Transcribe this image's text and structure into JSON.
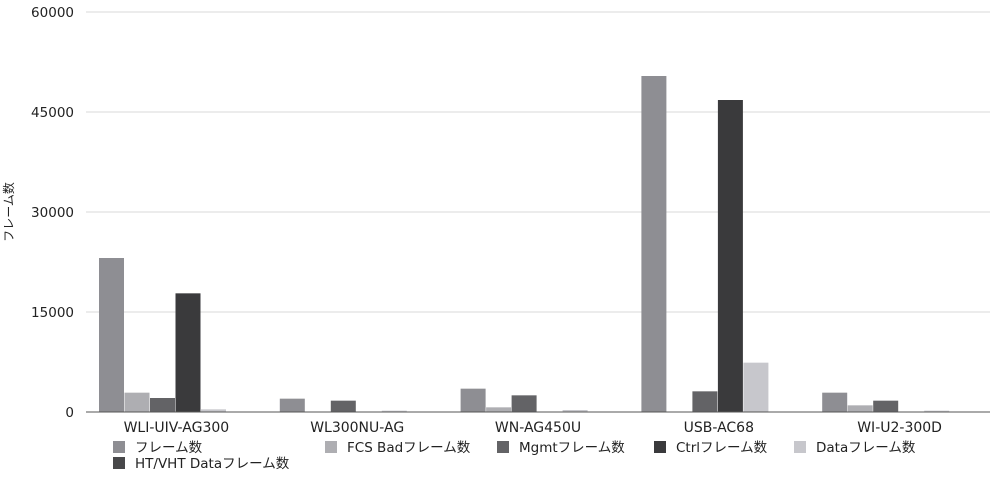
{
  "chart_data": {
    "type": "bar",
    "title": "",
    "xlabel": "",
    "ylabel": "フレーム数",
    "ylim": [
      0,
      60000
    ],
    "yticks": [
      0,
      15000,
      30000,
      45000,
      60000
    ],
    "grid": true,
    "legend_position": "bottom",
    "categories": [
      "WLI-UIV-AG300",
      "WL300NU-AG",
      "WN-AG450U",
      "USB-AC68",
      "WI-U2-300D"
    ],
    "series": [
      {
        "name": "フレーム数",
        "color": "#8e8e93",
        "values": [
          23100,
          2000,
          3500,
          50400,
          2900
        ]
      },
      {
        "name": "FCS Badフレーム数",
        "color": "#aeaeb2",
        "values": [
          2900,
          0,
          700,
          0,
          1000
        ]
      },
      {
        "name": "Mgmtフレーム数",
        "color": "#636366",
        "values": [
          2100,
          1700,
          2500,
          3100,
          1700
        ]
      },
      {
        "name": "Ctrlフレーム数",
        "color": "#3a3a3c",
        "values": [
          17800,
          0,
          0,
          46800,
          0
        ]
      },
      {
        "name": "Dataフレーム数",
        "color": "#c7c7cc",
        "values": [
          400,
          200,
          300,
          7400,
          200
        ]
      },
      {
        "name": "HT/VHT Dataフレーム数",
        "color": "#48484a",
        "values": [
          0,
          0,
          0,
          0,
          0
        ]
      }
    ]
  }
}
